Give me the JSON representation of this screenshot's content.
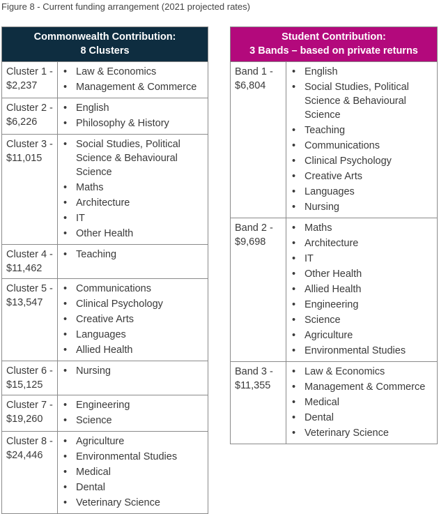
{
  "caption": "Figure 8 - Current funding arrangement (2021 projected rates)",
  "tables": [
    {
      "header": [
        "Commonwealth Contribution:",
        "8 Clusters"
      ],
      "rows": [
        {
          "name": "Cluster 1 -",
          "amount": "$2,237",
          "items": [
            "Law & Economics",
            "Management & Commerce"
          ]
        },
        {
          "name": "Cluster 2 -",
          "amount": "$6,226",
          "items": [
            "English",
            "Philosophy & History"
          ]
        },
        {
          "name": "Cluster 3 -",
          "amount": "$11,015",
          "items": [
            "Social Studies, Political Science & Behavioural Science",
            "Maths",
            "Architecture",
            "IT",
            "Other Health"
          ]
        },
        {
          "name": "Cluster 4 -",
          "amount": "$11,462",
          "items": [
            "Teaching"
          ]
        },
        {
          "name": "Cluster 5 -",
          "amount": "$13,547",
          "items": [
            "Communications",
            "Clinical Psychology",
            "Creative Arts",
            "Languages",
            "Allied Health"
          ]
        },
        {
          "name": "Cluster 6 -",
          "amount": "$15,125",
          "items": [
            "Nursing"
          ]
        },
        {
          "name": "Cluster 7 -",
          "amount": "$19,260",
          "items": [
            "Engineering",
            "Science"
          ]
        },
        {
          "name": "Cluster 8 -",
          "amount": "$24,446",
          "items": [
            "Agriculture",
            "Environmental Studies",
            "Medical",
            "Dental",
            "Veterinary Science"
          ]
        }
      ]
    },
    {
      "header": [
        "Student Contribution:",
        "3 Bands – based on private returns"
      ],
      "rows": [
        {
          "name": "Band 1 -",
          "amount": "$6,804",
          "items": [
            "English",
            "Social Studies, Political Science & Behavioural Science",
            "Teaching",
            "Communications",
            "Clinical Psychology",
            "Creative Arts",
            "Languages",
            "Nursing"
          ]
        },
        {
          "name": "Band 2 -",
          "amount": "$9,698",
          "items": [
            "Maths",
            "Architecture",
            "IT",
            "Other Health",
            "Allied Health",
            "Engineering",
            "Science",
            "Agriculture",
            "Environmental Studies"
          ]
        },
        {
          "name": "Band 3 -",
          "amount": "$11,355",
          "items": [
            "Law & Economics",
            "Management & Commerce",
            "Medical",
            "Dental",
            "Veterinary Science"
          ]
        }
      ]
    }
  ]
}
